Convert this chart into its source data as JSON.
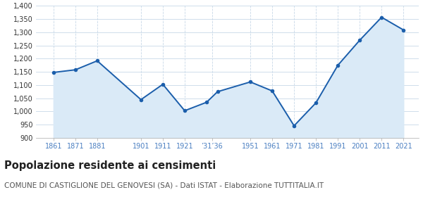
{
  "years": [
    1861,
    1871,
    1881,
    1901,
    1911,
    1921,
    1931,
    1936,
    1951,
    1961,
    1971,
    1981,
    1991,
    2001,
    2011,
    2021
  ],
  "population": [
    1148,
    1158,
    1192,
    1045,
    1103,
    1003,
    1035,
    1075,
    1112,
    1078,
    946,
    1033,
    1175,
    1270,
    1357,
    1309
  ],
  "x_tick_positions": [
    1861,
    1871,
    1881,
    1901,
    1911,
    1921,
    1933.5,
    1951,
    1961,
    1971,
    1981,
    1991,
    2001,
    2011,
    2021
  ],
  "x_tick_labels": [
    "1861",
    "1871",
    "1881",
    "1901",
    "1911",
    "1921",
    "’31’36",
    "1951",
    "1961",
    "1971",
    "1981",
    "1991",
    "2001",
    "2011",
    "2021"
  ],
  "ylim": [
    900,
    1400
  ],
  "yticks": [
    900,
    950,
    1000,
    1050,
    1100,
    1150,
    1200,
    1250,
    1300,
    1350,
    1400
  ],
  "xlim_left": 1853,
  "xlim_right": 2028,
  "line_color": "#1b5eab",
  "fill_color": "#daeaf7",
  "marker_color": "#1b5eab",
  "bg_color": "#ffffff",
  "plot_bg_color": "#ffffff",
  "grid_color": "#c8d8e8",
  "tick_label_color": "#4a7fc1",
  "title": "Popolazione residente ai censimenti",
  "subtitle": "COMUNE DI CASTIGLIONE DEL GENOVESI (SA) - Dati ISTAT - Elaborazione TUTTITALIA.IT",
  "title_fontsize": 10.5,
  "subtitle_fontsize": 7.5,
  "axis_fontsize": 7
}
